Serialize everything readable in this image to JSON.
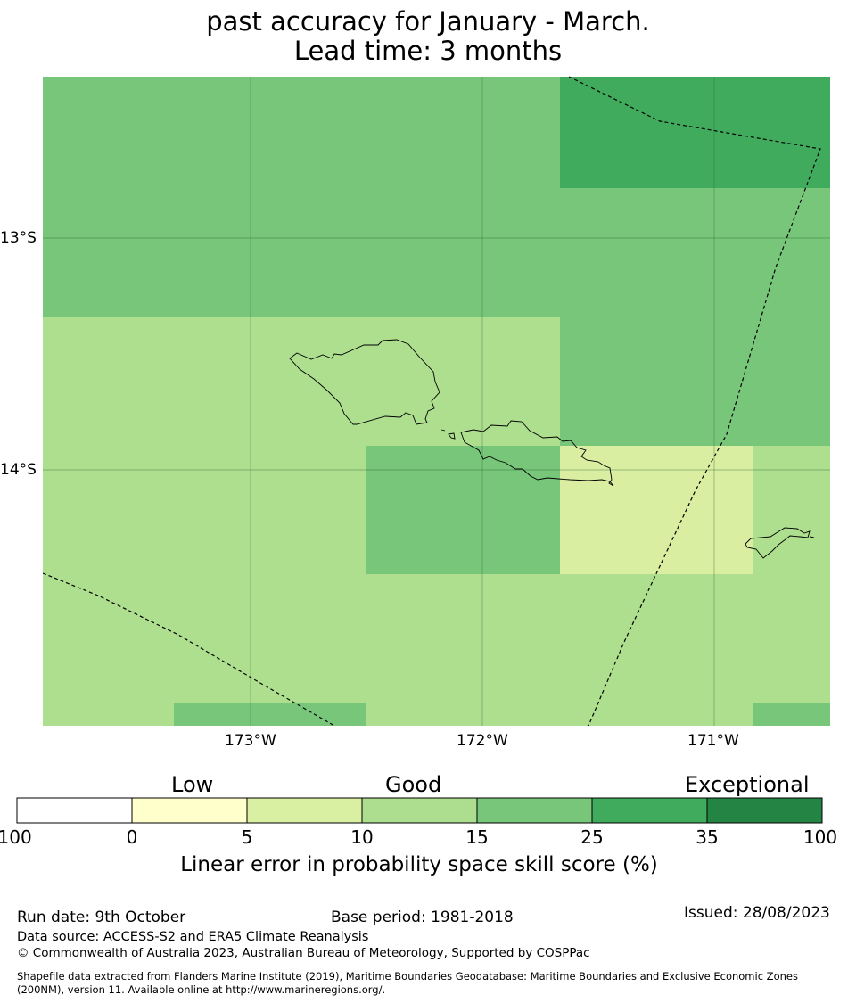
{
  "title": {
    "line1": "past accuracy for January - March.",
    "line2": "Lead time: 3 months"
  },
  "map": {
    "lat_labels": [
      "13°S",
      "14°S"
    ],
    "lon_labels": [
      "173°W",
      "172°W",
      "171°W"
    ],
    "skill_colors": {
      "5-10": "#d9eea0",
      "10-15": "#addf8e",
      "15-25": "#78c67a",
      "25-35": "#41ab5d"
    }
  },
  "colorbar": {
    "categories": [
      "Low",
      "Good",
      "Exceptional"
    ],
    "ticks": [
      "-100",
      "0",
      "5",
      "10",
      "15",
      "25",
      "35",
      "100"
    ],
    "colors": [
      "#ffffff",
      "#ffffcc",
      "#d9f0a3",
      "#addd8e",
      "#78c679",
      "#41ab5d",
      "#238443"
    ],
    "label": "Linear error in probability space skill score (%)"
  },
  "footer": {
    "run_date": "Run date: 9th October",
    "base_period": "Base period: 1981-2018",
    "issued": "Issued: 28/08/2023",
    "data_source": "Data source: ACCESS-S2 and ERA5 Climate Reanalysis",
    "copyright": "© Commonwealth of Australia 2023, Australian Bureau of Meteorology, Supported by COSPPac",
    "shapefile_line1": "Shapefile data extracted from Flanders Marine Institute (2019), Maritime Boundaries Geodatabase: Maritime Boundaries and Exclusive Economic Zones",
    "shapefile_line2": "(200NM), version 11. Available online at http://www.marineregions.org/."
  }
}
